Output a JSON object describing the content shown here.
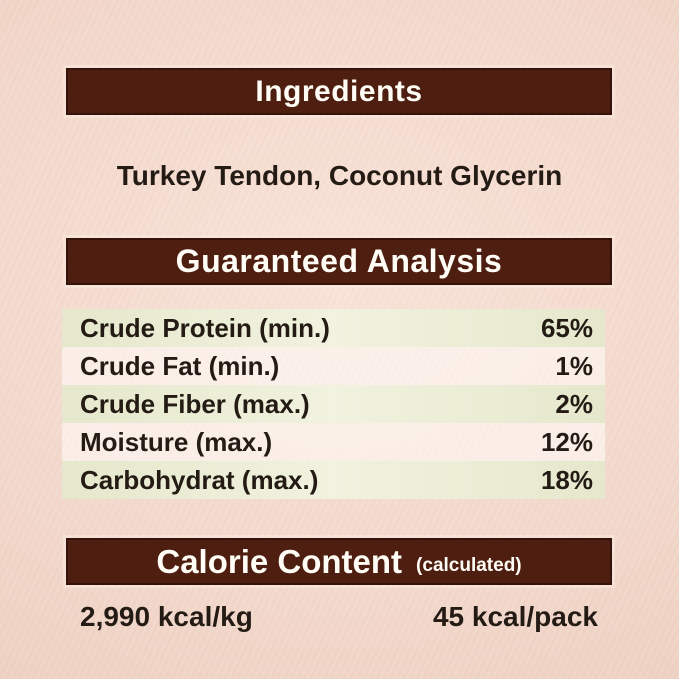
{
  "sections": {
    "ingredients": {
      "header": "Ingredients",
      "list": "Turkey Tendon, Coconut Glycerin"
    },
    "guaranteed_analysis": {
      "header": "Guaranteed Analysis",
      "rows": [
        {
          "name": "Crude Protein (min.)",
          "value": "65%"
        },
        {
          "name": "Crude Fat (min.)",
          "value": "1%"
        },
        {
          "name": "Crude Fiber (max.)",
          "value": "2%"
        },
        {
          "name": "Moisture (max.)",
          "value": "12%"
        },
        {
          "name": "Carbohydrat (max.)",
          "value": "18%"
        }
      ]
    },
    "calorie_content": {
      "header": "Calorie Content",
      "qualifier": "(calculated)",
      "per_kg": "2,990 kcal/kg",
      "per_pack": "45 kcal/pack"
    }
  },
  "colors": {
    "banner_brown": "#4e1f10",
    "banner_border": "#36130a",
    "banner_text": "#fffdf6",
    "row_green": "#e7eacf",
    "row_light": "#fbf5f0",
    "background_center": "#f9e3d8",
    "background_edge": "#e7cabb",
    "body_text": "#241b15"
  }
}
